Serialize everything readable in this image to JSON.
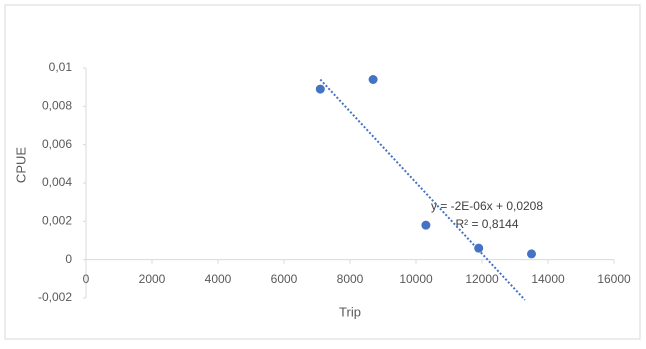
{
  "chart_data": {
    "type": "scatter",
    "x_label": "Trip",
    "y_label": "CPUE",
    "series": [
      {
        "name": "CPUE",
        "color": "#4472c4",
        "x": [
          7100,
          8700,
          10300,
          11900,
          13500
        ],
        "values": [
          0.0089,
          0.0094,
          0.0018,
          0.0006,
          0.0003
        ]
      }
    ],
    "trendline": {
      "x": [
        7100,
        13300
      ],
      "values": [
        0.0094,
        -0.0021
      ],
      "color": "#4472c4"
    },
    "annotations": [
      "y = -2E-06x + 0,0208",
      "R² = 0,8144"
    ],
    "xlim": [
      0,
      16000
    ],
    "xticks": [
      0,
      2000,
      4000,
      6000,
      8000,
      10000,
      12000,
      14000,
      16000
    ],
    "ylim": [
      -0.002,
      0.01
    ],
    "yticks": [
      {
        "value": -0.002,
        "label": "-0,002"
      },
      0,
      {
        "value": 0.002,
        "label": "0,002"
      },
      {
        "value": 0.004,
        "label": "0,004"
      },
      {
        "value": 0.006,
        "label": "0,006"
      },
      {
        "value": 0.008,
        "label": "0,008"
      },
      {
        "value": 0.01,
        "label": "0,01"
      }
    ],
    "grid": false
  }
}
